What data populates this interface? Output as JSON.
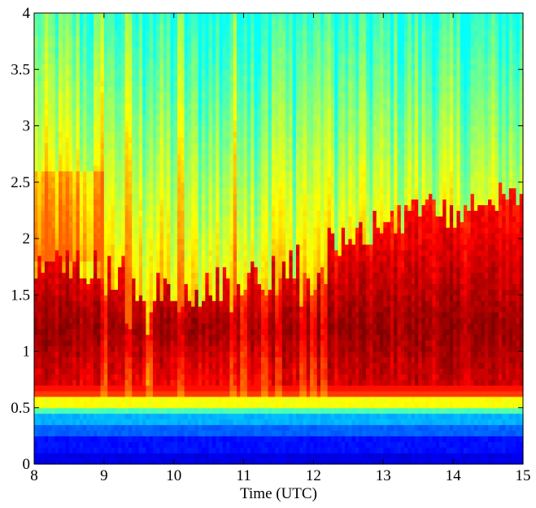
{
  "chart_data": {
    "type": "heatmap",
    "title": "",
    "xlabel": "Time (UTC)",
    "ylabel": "",
    "xlim": [
      8,
      15
    ],
    "ylim": [
      0,
      4
    ],
    "xticks": [
      "8",
      "9",
      "10",
      "11",
      "12",
      "13",
      "14",
      "15"
    ],
    "yticks": [
      "0",
      "0.5",
      "1",
      "1.5",
      "2",
      "2.5",
      "3",
      "3.5",
      "4"
    ],
    "colormap": "jet",
    "colors": [
      "#00008f",
      "#0000ff",
      "#0080ff",
      "#00ffff",
      "#80ff80",
      "#ffff00",
      "#ff8000",
      "#ff0000",
      "#800000"
    ],
    "grid": false,
    "layer_top": {
      "x": [
        8.0,
        8.5,
        9.0,
        9.5,
        10.0,
        10.5,
        11.0,
        11.5,
        12.0,
        12.5,
        13.0,
        13.5,
        14.0,
        14.5,
        14.8,
        15.0
      ],
      "y": [
        1.72,
        1.75,
        1.78,
        1.6,
        1.5,
        1.55,
        1.65,
        1.75,
        1.85,
        2.0,
        2.1,
        2.2,
        2.25,
        2.35,
        2.45,
        2.35
      ]
    },
    "surface_bands": [
      {
        "y_from": 0.0,
        "y_to": 0.1,
        "level": 0.1
      },
      {
        "y_from": 0.1,
        "y_to": 0.25,
        "level": 0.14
      },
      {
        "y_from": 0.25,
        "y_to": 0.35,
        "level": 0.22
      },
      {
        "y_from": 0.35,
        "y_to": 0.45,
        "level": 0.3
      },
      {
        "y_from": 0.45,
        "y_to": 0.52,
        "level": 0.45
      },
      {
        "y_from": 0.52,
        "y_to": 0.6,
        "level": 0.62
      }
    ]
  }
}
